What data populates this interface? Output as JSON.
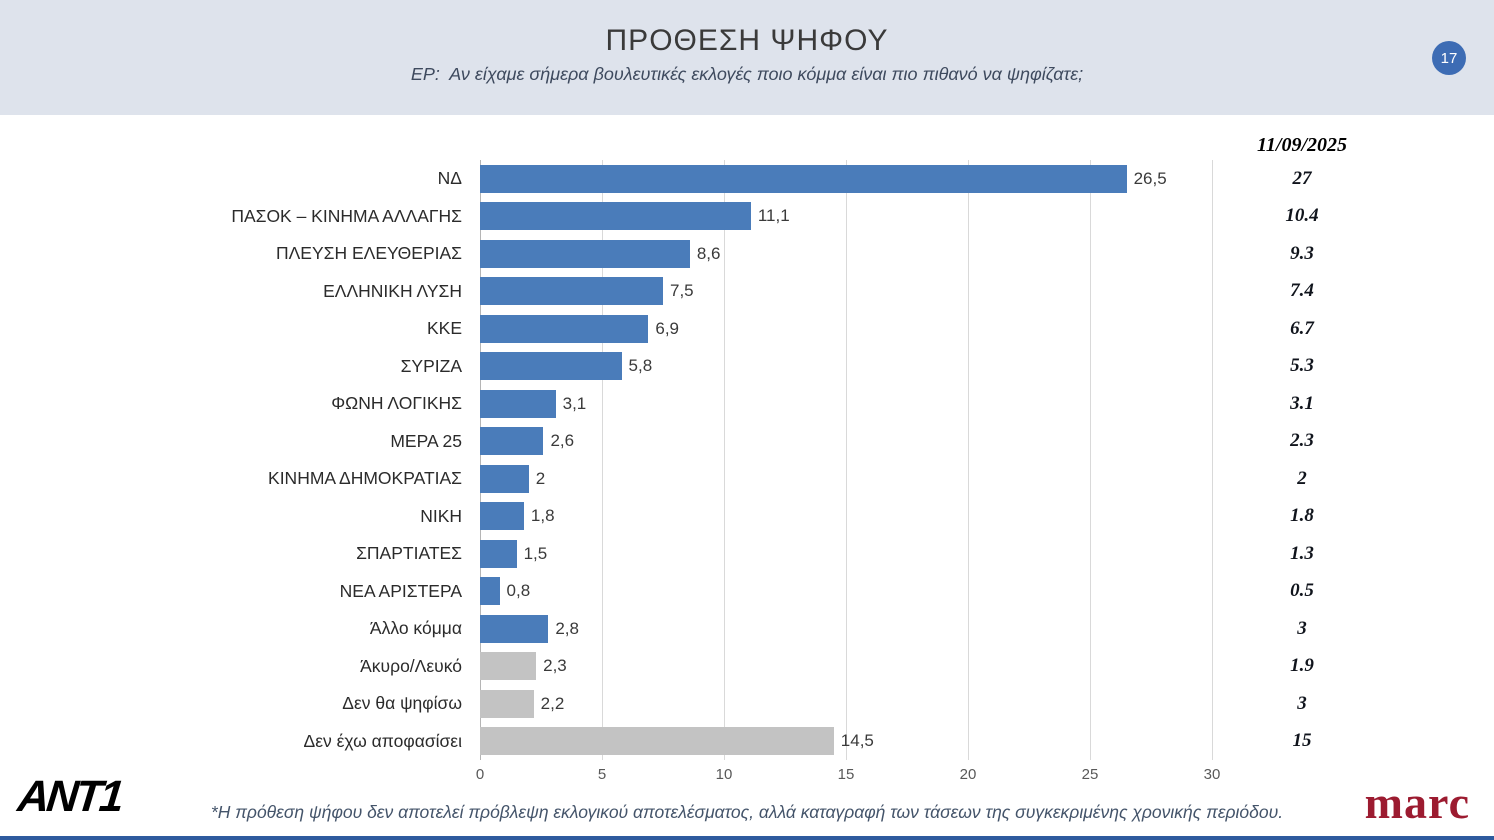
{
  "header": {
    "title": "ΠΡΟΘΕΣΗ ΨΗΦΟΥ",
    "subtitle": "ΕΡ:  Αν είχαμε σήμερα βουλευτικές εκλογές ποιο κόμμα είναι πιο πιθανό να ψηφίζατε;",
    "page_number": "17"
  },
  "footer": {
    "note": "*Η πρόθεση ψήφου δεν αποτελεί πρόβλεψη εκλογικού αποτελέσματος, αλλά καταγραφή των τάσεων της συγκεκριμένης χρονικής περιόδου.",
    "ant1": "ANT1",
    "marc": "marc"
  },
  "chart_data": {
    "type": "bar",
    "orientation": "horizontal",
    "title": "ΠΡΟΘΕΣΗ ΨΗΦΟΥ",
    "previous_date": "11/09/2025",
    "xlim": [
      0,
      30
    ],
    "x_ticks": [
      0,
      5,
      10,
      15,
      20,
      25,
      30
    ],
    "grid": true,
    "colors": {
      "party": "#4a7cba",
      "neutral": "#c3c3c3"
    },
    "rows": [
      {
        "label": "ΝΔ",
        "value": 26.5,
        "value_label": "26,5",
        "previous": "27",
        "color": "party"
      },
      {
        "label": "ΠΑΣΟΚ – ΚΙΝΗΜΑ ΑΛΛΑΓΗΣ",
        "value": 11.1,
        "value_label": "11,1",
        "previous": "10.4",
        "color": "party"
      },
      {
        "label": "ΠΛΕΥΣΗ ΕΛΕΥΘΕΡΙΑΣ",
        "value": 8.6,
        "value_label": "8,6",
        "previous": "9.3",
        "color": "party"
      },
      {
        "label": "ΕΛΛΗΝΙΚΗ ΛΥΣΗ",
        "value": 7.5,
        "value_label": "7,5",
        "previous": "7.4",
        "color": "party"
      },
      {
        "label": "ΚΚΕ",
        "value": 6.9,
        "value_label": "6,9",
        "previous": "6.7",
        "color": "party"
      },
      {
        "label": "ΣΥΡΙΖΑ",
        "value": 5.8,
        "value_label": "5,8",
        "previous": "5.3",
        "color": "party"
      },
      {
        "label": "ΦΩΝΗ ΛΟΓΙΚΗΣ",
        "value": 3.1,
        "value_label": "3,1",
        "previous": "3.1",
        "color": "party"
      },
      {
        "label": "ΜΕΡΑ 25",
        "value": 2.6,
        "value_label": "2,6",
        "previous": "2.3",
        "color": "party"
      },
      {
        "label": "ΚΙΝΗΜΑ ΔΗΜΟΚΡΑΤΙΑΣ",
        "value": 2.0,
        "value_label": "2",
        "previous": "2",
        "color": "party"
      },
      {
        "label": "ΝΙΚΗ",
        "value": 1.8,
        "value_label": "1,8",
        "previous": "1.8",
        "color": "party"
      },
      {
        "label": "ΣΠΑΡΤΙΑΤΕΣ",
        "value": 1.5,
        "value_label": "1,5",
        "previous": "1.3",
        "color": "party"
      },
      {
        "label": "ΝΕΑ ΑΡΙΣΤΕΡΑ",
        "value": 0.8,
        "value_label": "0,8",
        "previous": "0.5",
        "color": "party"
      },
      {
        "label": "Άλλο κόμμα",
        "value": 2.8,
        "value_label": "2,8",
        "previous": "3",
        "color": "party"
      },
      {
        "label": "Άκυρο/Λευκό",
        "value": 2.3,
        "value_label": "2,3",
        "previous": "1.9",
        "color": "neutral"
      },
      {
        "label": "Δεν θα ψηφίσω",
        "value": 2.2,
        "value_label": "2,2",
        "previous": "3",
        "color": "neutral"
      },
      {
        "label": "Δεν έχω αποφασίσει",
        "value": 14.5,
        "value_label": "14,5",
        "previous": "15",
        "color": "neutral"
      }
    ]
  }
}
